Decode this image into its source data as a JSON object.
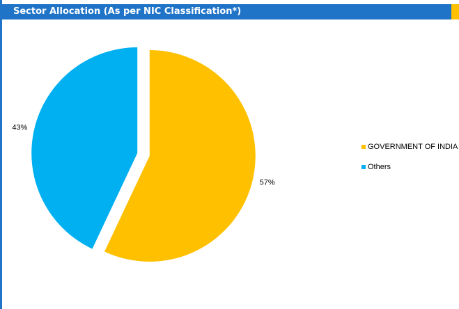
{
  "header": {
    "title": "Sector Allocation (As per NIC Classification*)",
    "color": "#1f74c8",
    "accent_color": "#ffc000"
  },
  "chart_data": {
    "type": "pie",
    "title": "",
    "exploded": true,
    "start_angle_deg": 0,
    "legend_position": "right",
    "series": [
      {
        "name": "GOVERNMENT OF INDIA",
        "value": 57,
        "label": "57%",
        "color": "#ffc000"
      },
      {
        "name": "Others",
        "value": 43,
        "label": "43%",
        "color": "#00b0f0"
      }
    ]
  }
}
